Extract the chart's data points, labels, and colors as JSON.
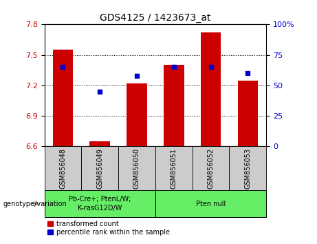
{
  "title": "GDS4125 / 1423673_at",
  "categories": [
    "GSM856048",
    "GSM856049",
    "GSM856050",
    "GSM856051",
    "GSM856052",
    "GSM856053"
  ],
  "red_values": [
    7.55,
    6.65,
    7.22,
    7.4,
    7.72,
    7.25
  ],
  "blue_values": [
    65,
    45,
    58,
    65,
    65,
    60
  ],
  "ylim_left": [
    6.6,
    7.8
  ],
  "ylim_right": [
    0,
    100
  ],
  "yticks_left": [
    6.6,
    6.9,
    7.2,
    7.5,
    7.8
  ],
  "yticks_right": [
    0,
    25,
    50,
    75,
    100
  ],
  "ytick_labels_right": [
    "0",
    "25",
    "50",
    "75",
    "100%"
  ],
  "red_color": "#cc0000",
  "blue_color": "#0000cc",
  "bar_width": 0.55,
  "group1_label": "Pb-Cre+; PtenL/W;\nK-rasG12D/W",
  "group2_label": "Pten null",
  "group1_indices": [
    0,
    1,
    2
  ],
  "group2_indices": [
    3,
    4,
    5
  ],
  "genotype_label": "genotype/variation",
  "legend_red": "transformed count",
  "legend_blue": "percentile rank within the sample",
  "group_bg_gray": "#cccccc",
  "group_bg_green": "#66ee66",
  "baseline": 6.6,
  "fig_width": 4.61,
  "fig_height": 3.54,
  "dpi": 100
}
